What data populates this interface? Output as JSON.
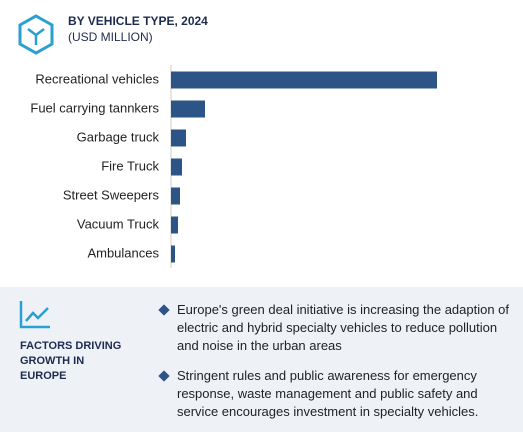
{
  "chart_data": {
    "type": "bar",
    "orientation": "horizontal",
    "title": "BY VEHICLE TYPE, 2024",
    "subtitle": "(USD MILLION)",
    "categories": [
      "Recreational vehicles",
      "Fuel carrying tannkers",
      "Garbage truck",
      "Fire Truck",
      "Street Sweepers",
      "Vacuum Truck",
      "Ambulances"
    ],
    "values": [
      266,
      34,
      15,
      11,
      9,
      7,
      4
    ],
    "color": "#2d5486"
  },
  "factors": {
    "heading": "FACTORS DRIVING GROWTH IN EUROPE",
    "bullets": [
      "Europe's green deal initiative is increasing the adaption of electric and hybrid specialty vehicles to reduce pollution and noise in the urban areas",
      "Stringent rules and public awareness for emergency response, waste management and public safety and service encourages investment in specialty vehicles."
    ]
  }
}
